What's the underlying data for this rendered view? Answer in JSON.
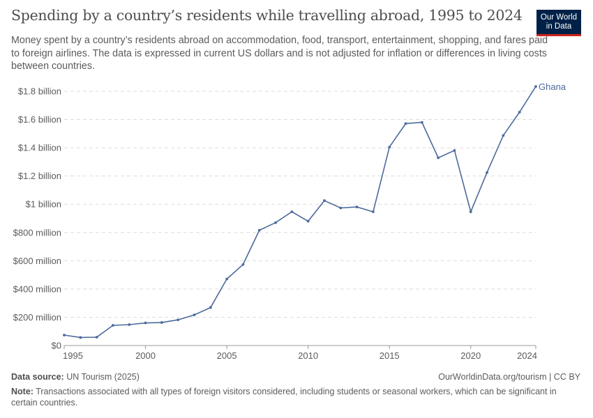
{
  "header": {
    "title": "Spending by a country’s residents while travelling abroad, 1995 to 2024",
    "subtitle": "Money spent by a country’s residents abroad on accommodation, food, transport, entertainment, shopping, and fares paid to foreign airlines. The data is expressed in current US dollars and is not adjusted for inflation or differences in living costs between countries.",
    "logo": "Our World in Data"
  },
  "chart_data": {
    "type": "line",
    "title": "Spending by a country’s residents while travelling abroad, 1995 to 2024",
    "xlabel": "",
    "ylabel": "",
    "xlim": [
      1995,
      2024
    ],
    "ylim": [
      0,
      1800000000
    ],
    "x_ticks": [
      1995,
      2000,
      2005,
      2010,
      2015,
      2020,
      2024
    ],
    "y_ticks": [
      {
        "v": 0,
        "label": "$0"
      },
      {
        "v": 200000000,
        "label": "$200 million"
      },
      {
        "v": 400000000,
        "label": "$400 million"
      },
      {
        "v": 600000000,
        "label": "$600 million"
      },
      {
        "v": 800000000,
        "label": "$800 million"
      },
      {
        "v": 1000000000,
        "label": "$1 billion"
      },
      {
        "v": 1200000000,
        "label": "$1.2 billion"
      },
      {
        "v": 1400000000,
        "label": "$1.4 billion"
      },
      {
        "v": 1600000000,
        "label": "$1.6 billion"
      },
      {
        "v": 1800000000,
        "label": "$1.8 billion"
      }
    ],
    "grid": "horizontal dashed",
    "legend": "inline-right",
    "series": [
      {
        "name": "Ghana",
        "color": "#4c6a9c",
        "x": [
          1995,
          1996,
          1997,
          1998,
          1999,
          2000,
          2001,
          2002,
          2003,
          2004,
          2005,
          2006,
          2007,
          2008,
          2009,
          2010,
          2011,
          2012,
          2013,
          2014,
          2015,
          2016,
          2017,
          2018,
          2019,
          2020,
          2021,
          2022,
          2023,
          2024
        ],
        "values": [
          74000000,
          57000000,
          59000000,
          143000000,
          148000000,
          160000000,
          163000000,
          182000000,
          217000000,
          269000000,
          471000000,
          574000000,
          816000000,
          870000000,
          947000000,
          880000000,
          1026000000,
          974000000,
          981000000,
          947000000,
          1405000000,
          1571000000,
          1580000000,
          1329000000,
          1381000000,
          947000000,
          1225000000,
          1487000000,
          1652000000,
          1834000000
        ]
      }
    ]
  },
  "footer": {
    "source_label": "Data source:",
    "source": "UN Tourism (2025)",
    "url": "OurWorldinData.org/tourism | CC BY",
    "note_label": "Note:",
    "note": "Transactions associated with all types of foreign visitors considered, including students or seasonal workers, which can be significant in certain countries."
  }
}
